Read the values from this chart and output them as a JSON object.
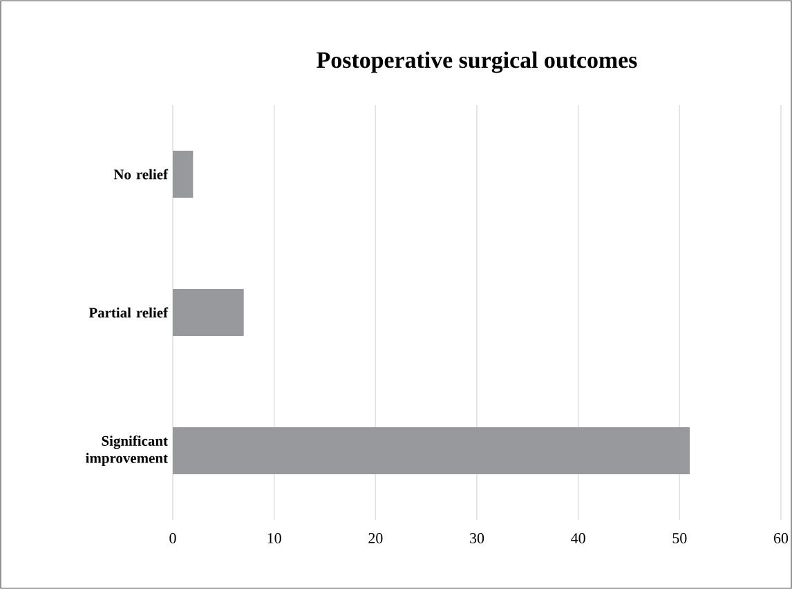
{
  "chart_data": {
    "type": "bar",
    "orientation": "horizontal",
    "title": "Postoperative surgical outcomes",
    "categories": [
      "No relief",
      "Partial relief",
      "Significant improvement"
    ],
    "values": [
      2,
      7,
      51
    ],
    "color": "#98999c",
    "xlim": [
      0,
      60
    ],
    "xticks": [
      0,
      10,
      20,
      30,
      40,
      50,
      60
    ],
    "grid": "x"
  }
}
